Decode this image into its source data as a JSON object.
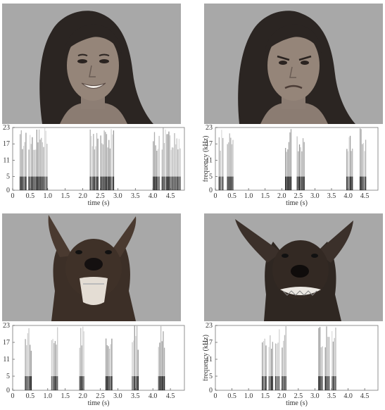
{
  "figure": {
    "panels": [
      {
        "id": "woman-happy",
        "subject": "woman",
        "expression": "smiling face"
      },
      {
        "id": "woman-angry",
        "subject": "woman",
        "expression": "angry face"
      },
      {
        "id": "dog-playful",
        "subject": "dog",
        "expression": "open-mouth play face"
      },
      {
        "id": "dog-aggressive",
        "subject": "dog",
        "expression": "snarling face"
      }
    ]
  },
  "axes": {
    "ylabel": "frequency (kHz)",
    "xlabel": "time (s)",
    "yticks": [
      "0",
      "5",
      "11",
      "17",
      "23"
    ],
    "xticks": [
      "0",
      "0.5",
      "1.0",
      "1.5",
      "2.0",
      "2.5",
      "3.0",
      "3.5",
      "4.0",
      "4.5"
    ]
  },
  "chart_data": [
    {
      "type": "heatmap",
      "panel": "woman-happy",
      "xlabel": "time (s)",
      "ylabel": "",
      "xlim": [
        0,
        4.9
      ],
      "ylim": [
        0,
        23
      ],
      "bursts_s": [
        [
          0.2,
          0.4
        ],
        [
          0.45,
          1.0
        ],
        [
          2.2,
          2.45
        ],
        [
          2.5,
          2.9
        ],
        [
          4.0,
          4.2
        ],
        [
          4.25,
          4.8
        ]
      ]
    },
    {
      "type": "heatmap",
      "panel": "woman-angry",
      "xlabel": "time (s)",
      "ylabel": "frequency (kHz)",
      "xlim": [
        0,
        4.9
      ],
      "ylim": [
        0,
        23
      ],
      "bursts_s": [
        [
          0.1,
          0.25
        ],
        [
          0.35,
          0.55
        ],
        [
          2.1,
          2.3
        ],
        [
          2.45,
          2.7
        ],
        [
          3.95,
          4.15
        ],
        [
          4.35,
          4.55
        ]
      ]
    },
    {
      "type": "heatmap",
      "panel": "dog-playful",
      "xlabel": "time (s)",
      "ylabel": "",
      "xlim": [
        0,
        4.9
      ],
      "ylim": [
        0,
        23
      ],
      "bursts_s": [
        [
          0.35,
          0.55
        ],
        [
          1.1,
          1.3
        ],
        [
          1.9,
          2.05
        ],
        [
          2.65,
          2.85
        ],
        [
          3.4,
          3.6
        ],
        [
          4.15,
          4.35
        ]
      ]
    },
    {
      "type": "heatmap",
      "panel": "dog-aggressive",
      "xlabel": "time (s)",
      "ylabel": "frequency (kHz)",
      "xlim": [
        0,
        4.9
      ],
      "ylim": [
        0,
        23
      ],
      "bursts_s": [
        [
          1.4,
          1.55
        ],
        [
          1.6,
          1.75
        ],
        [
          1.8,
          1.95
        ],
        [
          2.0,
          2.15
        ],
        [
          3.1,
          3.25
        ],
        [
          3.3,
          3.45
        ],
        [
          3.5,
          3.65
        ]
      ]
    }
  ]
}
